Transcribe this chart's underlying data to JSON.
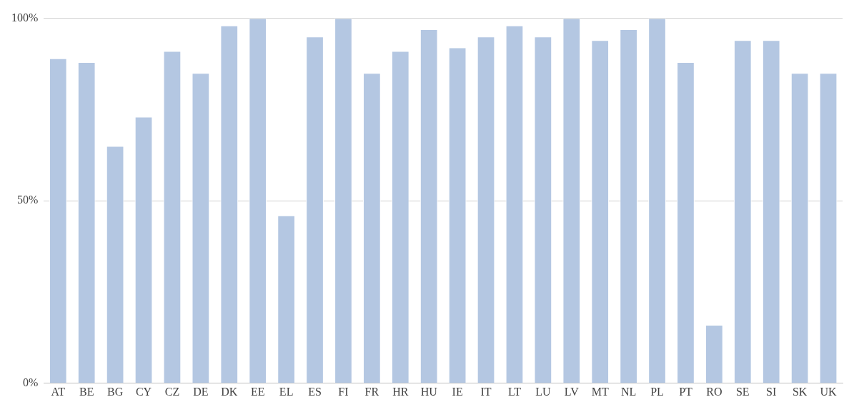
{
  "chart_data": {
    "type": "bar",
    "categories": [
      "AT",
      "BE",
      "BG",
      "CY",
      "CZ",
      "DE",
      "DK",
      "EE",
      "EL",
      "ES",
      "FI",
      "FR",
      "HR",
      "HU",
      "IE",
      "IT",
      "LT",
      "LU",
      "LV",
      "MT",
      "NL",
      "PL",
      "PT",
      "RO",
      "SE",
      "SI",
      "SK",
      "UK"
    ],
    "values": [
      89,
      88,
      65,
      73,
      91,
      85,
      98,
      100,
      46,
      95,
      100,
      85,
      91,
      97,
      92,
      95,
      98,
      95,
      100,
      94,
      97,
      100,
      88,
      16,
      94,
      94,
      85,
      85
    ],
    "color": "#b4c7e2",
    "ylim": [
      0,
      100
    ],
    "yticks": [
      {
        "value": 0,
        "label": "0%"
      },
      {
        "value": 50,
        "label": "50%"
      },
      {
        "value": 100,
        "label": "100%"
      }
    ],
    "grid": "y"
  }
}
